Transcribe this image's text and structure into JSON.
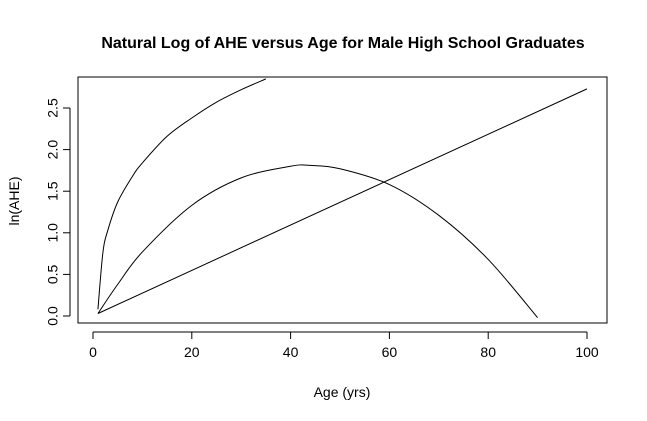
{
  "chart_data": {
    "type": "line",
    "title": "Natural Log of AHE versus Age for Male High School Graduates",
    "xlabel": "Age (yrs)",
    "ylabel": "ln(AHE)",
    "xlim": [
      1,
      100
    ],
    "ylim": [
      0,
      2.75
    ],
    "x_ticks": [
      0,
      20,
      40,
      60,
      80,
      100
    ],
    "y_ticks": [
      0.0,
      0.5,
      1.0,
      1.5,
      2.0,
      2.5
    ],
    "x_tick_labels": [
      "0",
      "20",
      "40",
      "60",
      "80",
      "100"
    ],
    "y_tick_labels": [
      "0.0",
      "0.5",
      "1.0",
      "1.5",
      "2.0",
      "2.5"
    ],
    "grid": false,
    "legend": "none",
    "series": [
      {
        "x": [
          1,
          2,
          3,
          5,
          8,
          10,
          15,
          20,
          25,
          30,
          35
        ],
        "y": [
          0.08,
          0.76,
          1.03,
          1.37,
          1.68,
          1.84,
          2.16,
          2.38,
          2.57,
          2.72,
          2.85
        ]
      },
      {
        "x": [
          1,
          5,
          10,
          20,
          30,
          40,
          44,
          50,
          60,
          70,
          80,
          90
        ],
        "y": [
          0.03,
          0.38,
          0.77,
          1.33,
          1.66,
          1.8,
          1.81,
          1.77,
          1.58,
          1.21,
          0.68,
          -0.02
        ]
      },
      {
        "x": [
          1,
          100
        ],
        "y": [
          0.03,
          2.73
        ]
      }
    ]
  }
}
